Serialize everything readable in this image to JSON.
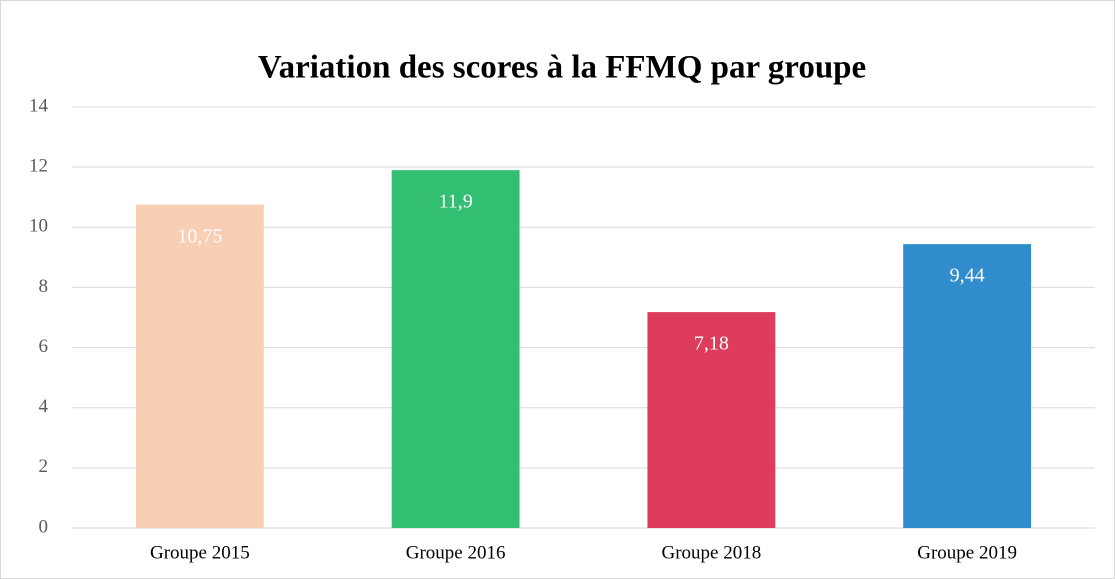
{
  "chart_data": {
    "type": "bar",
    "title": "Variation des scores à la FFMQ par groupe",
    "categories": [
      "Groupe 2015",
      "Groupe 2016",
      "Groupe 2018",
      "Groupe 2019"
    ],
    "values": [
      10.75,
      11.9,
      7.18,
      9.44
    ],
    "value_labels": [
      "10,75",
      "11,9",
      "7,18",
      "9,44"
    ],
    "colors": [
      "#f8cfb4",
      "#33bf72",
      "#dd3d5b",
      "#318cce"
    ],
    "ylim": [
      0,
      14
    ],
    "yticks": [
      0,
      2,
      4,
      6,
      8,
      10,
      12,
      14
    ],
    "grid": true
  }
}
